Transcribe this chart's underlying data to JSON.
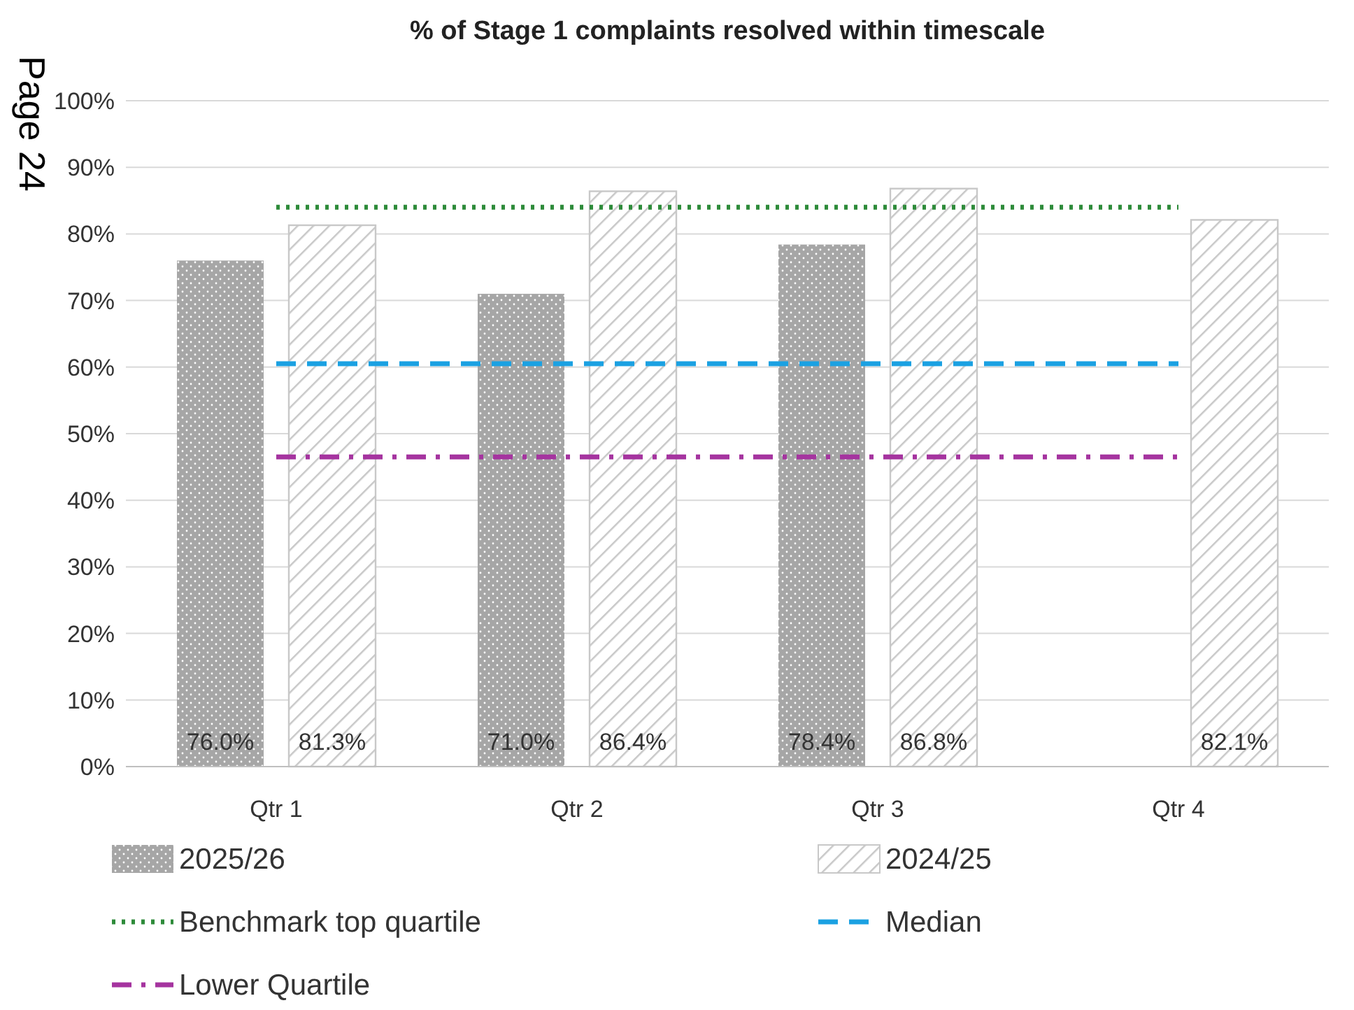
{
  "chart_data": {
    "type": "bar",
    "title": "% of Stage 1 complaints resolved within timescale",
    "categories": [
      "Qtr 1",
      "Qtr 2",
      "Qtr 3",
      "Qtr 4"
    ],
    "series": [
      {
        "name": "2025/26",
        "color": "#a6a6a6",
        "values": [
          76.0,
          71.0,
          78.4,
          null
        ],
        "value_labels": [
          "76.0%",
          "71.0%",
          "78.4%",
          null
        ]
      },
      {
        "name": "2024/25",
        "color": "#c8c8c8",
        "values": [
          81.3,
          86.4,
          86.8,
          82.1
        ],
        "value_labels": [
          "81.3%",
          "86.4%",
          "86.8%",
          "82.1%"
        ]
      },
      {
        "name": "Benchmark top quartile",
        "type": "line",
        "color": "#2e8b3a",
        "line_style": "dotted",
        "values": [
          84,
          84,
          84,
          84
        ]
      },
      {
        "name": "Median",
        "type": "line",
        "color": "#1ba1e2",
        "line_style": "dashed",
        "values": [
          60.5,
          60.5,
          60.5,
          60.5
        ]
      },
      {
        "name": "Lower Quartile",
        "type": "line",
        "color": "#a5349f",
        "line_style": "dashdot",
        "values": [
          46.5,
          46.5,
          46.5,
          46.5
        ]
      }
    ],
    "ylim": [
      0,
      100
    ],
    "yticks": [
      {
        "value": 0,
        "label": "0%"
      },
      {
        "value": 10,
        "label": "10%"
      },
      {
        "value": 20,
        "label": "20%"
      },
      {
        "value": 30,
        "label": "30%"
      },
      {
        "value": 40,
        "label": "40%"
      },
      {
        "value": 50,
        "label": "50%"
      },
      {
        "value": 60,
        "label": "60%"
      },
      {
        "value": 70,
        "label": "70%"
      },
      {
        "value": 80,
        "label": "80%"
      },
      {
        "value": 90,
        "label": "90%"
      },
      {
        "value": 100,
        "label": "100%"
      }
    ],
    "grid": "y",
    "legend": "bottom",
    "marker": "none",
    "annotations": [
      "Page 24"
    ]
  }
}
